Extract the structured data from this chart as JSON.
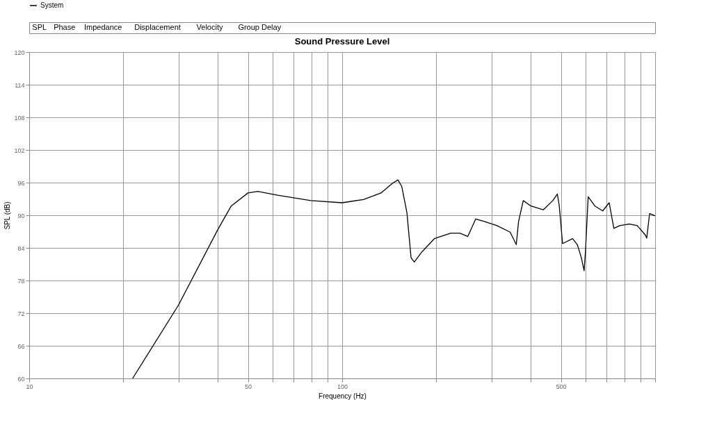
{
  "chart_data": {
    "type": "line",
    "title": "Sound Pressure Level",
    "xlabel": "Frequency (Hz)",
    "ylabel": "SPL (dB)",
    "annotations": [
      "SPL",
      "Phase",
      "Impedance",
      "Displacement",
      "Velocity",
      "Group Delay"
    ],
    "x": [
      21.4,
      30,
      40,
      44.2,
      50,
      53.7,
      62.2,
      79.4,
      100,
      117,
      133,
      145,
      150.7,
      155,
      161,
      166,
      170,
      180,
      197,
      222,
      238,
      252,
      267,
      283,
      312,
      344,
      360,
      366,
      379,
      401,
      439,
      471,
      487,
      494,
      506,
      545,
      564,
      581,
      593,
      599,
      611,
      642,
      680,
      713,
      738,
      771,
      827,
      876,
      930,
      940,
      960,
      1000
    ],
    "series": [
      {
        "name": "System",
        "color": "#000000",
        "values": [
          60,
          73.5,
          87.3,
          91.7,
          94.1,
          94.4,
          93.7,
          92.7,
          92.3,
          92.9,
          94.1,
          95.9,
          96.5,
          95.3,
          90.5,
          82.2,
          81.4,
          83.3,
          85.7,
          86.7,
          86.7,
          86.1,
          89.3,
          88.9,
          88.1,
          86.9,
          84.6,
          88.8,
          92.7,
          91.7,
          91.0,
          92.7,
          93.9,
          91.7,
          84.8,
          85.7,
          84.6,
          82.2,
          79.8,
          83.4,
          93.4,
          91.7,
          90.8,
          92.3,
          87.6,
          88.1,
          88.4,
          88.1,
          86.4,
          85.8,
          90.3,
          89.9
        ]
      }
    ],
    "log": "x",
    "xlim": [
      10,
      1000
    ],
    "xticks": [
      10,
      {
        "value": 20,
        "label": null
      },
      {
        "value": 30,
        "label": null
      },
      {
        "value": 40,
        "label": null
      },
      50,
      {
        "value": 60,
        "label": null
      },
      {
        "value": 70,
        "label": null
      },
      {
        "value": 80,
        "label": null
      },
      {
        "value": 90,
        "label": null
      },
      100,
      {
        "value": 200,
        "label": null
      },
      {
        "value": 300,
        "label": null
      },
      {
        "value": 400,
        "label": null
      },
      500,
      {
        "value": 600,
        "label": null
      },
      {
        "value": 700,
        "label": null
      },
      {
        "value": 800,
        "label": null
      },
      {
        "value": 900,
        "label": null
      },
      {
        "value": 1000,
        "label": null
      }
    ],
    "ylim": [
      60,
      120
    ],
    "yticks": [
      60,
      66,
      72,
      78,
      84,
      90,
      96,
      102,
      108,
      114,
      120
    ],
    "grid": true,
    "legend": "top left",
    "marker": "none",
    "line_style": "solid"
  }
}
